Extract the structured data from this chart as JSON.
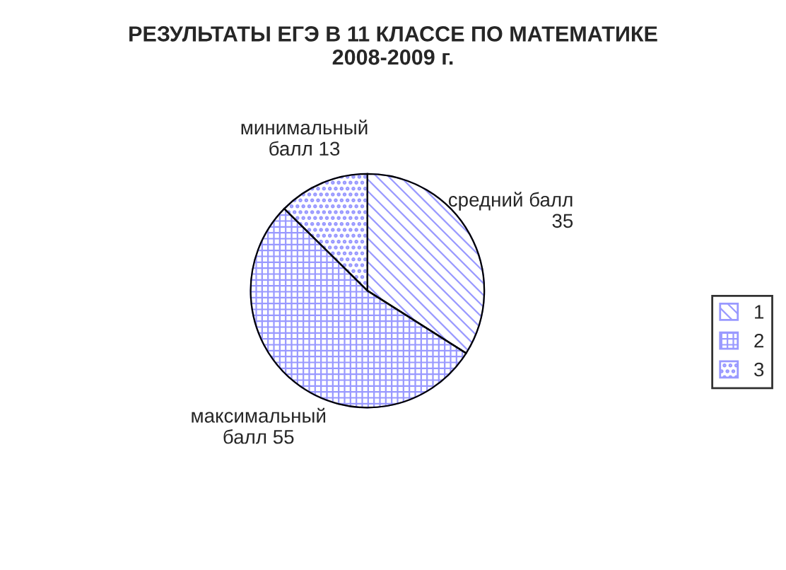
{
  "chart_data": {
    "type": "pie",
    "title": "РЕЗУЛЬТАТЫ ЕГЭ В 11 КЛАССЕ ПО МАТЕМАТИКЕ\n2008-2009 г.",
    "categories": [
      "1",
      "2",
      "3"
    ],
    "values": [
      35,
      55,
      13
    ],
    "colors": [
      "#9999ff",
      "#9999ff",
      "#9999ff"
    ],
    "value_labels": [
      "средний балл\n35",
      "максимальный\nбалл 55",
      "минимальный\nбалл 13"
    ],
    "legend": "right"
  }
}
